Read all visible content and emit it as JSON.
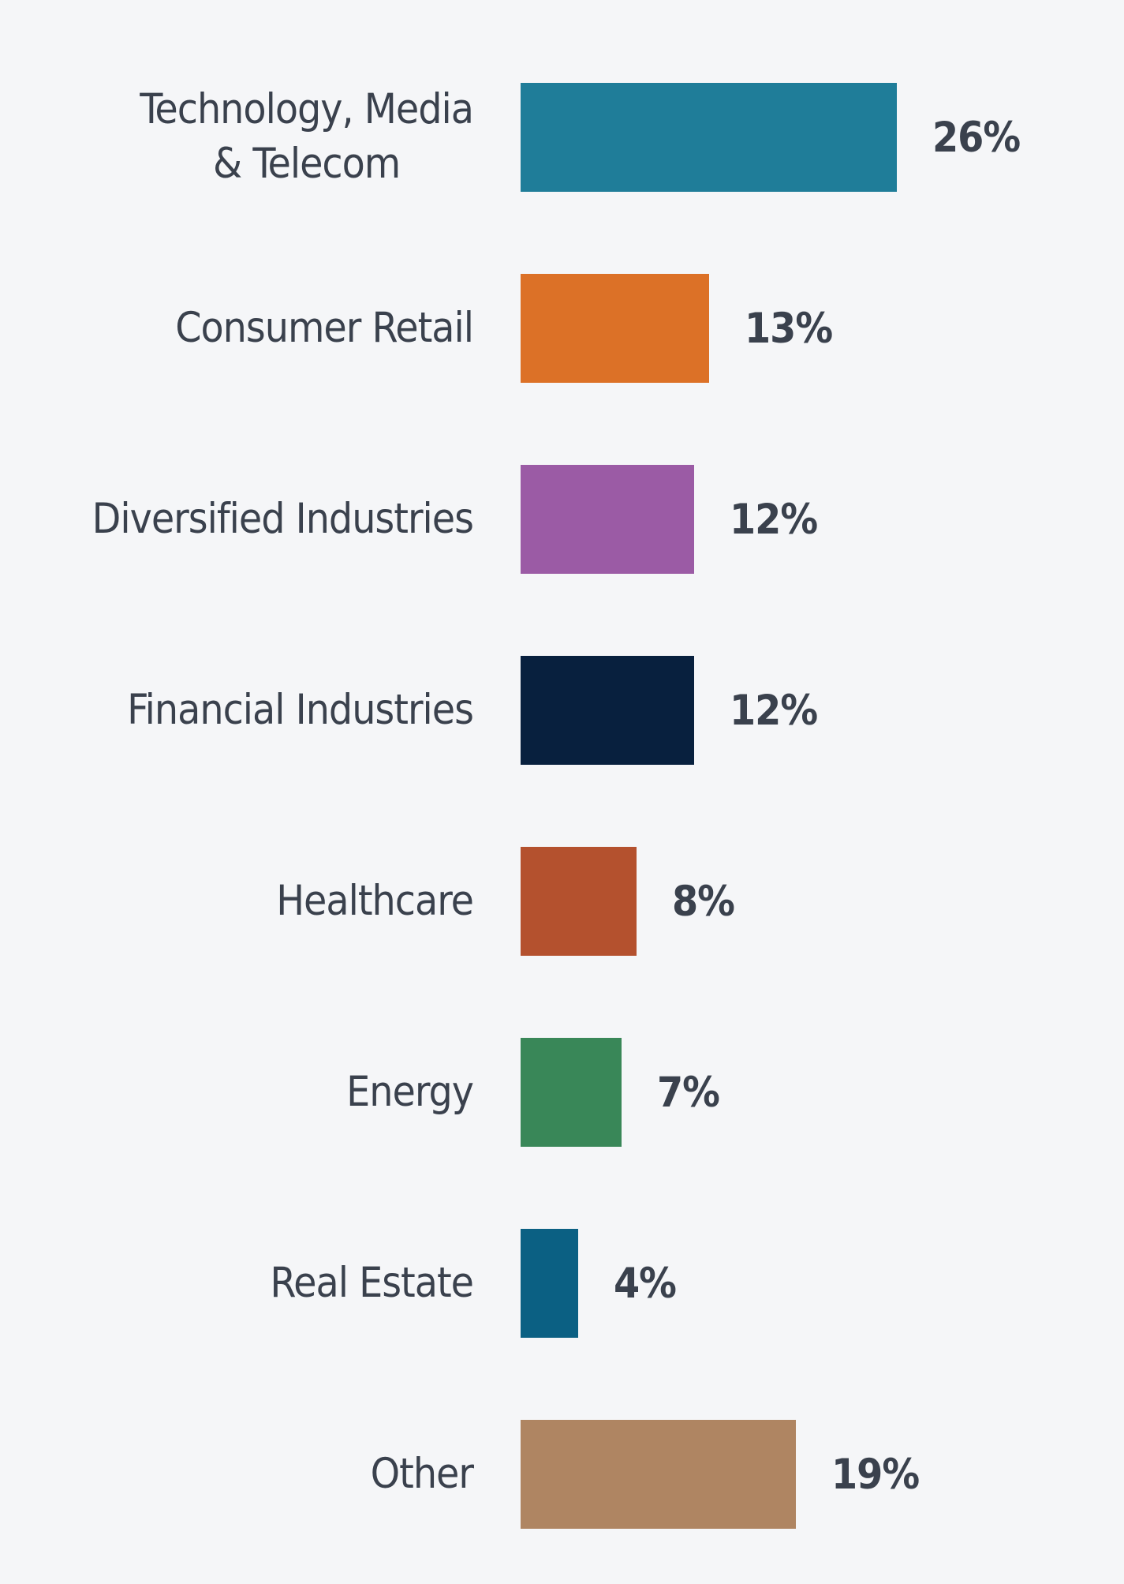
{
  "chart_data": {
    "type": "bar",
    "orientation": "horizontal",
    "title": "",
    "xlabel": "",
    "ylabel": "",
    "unit": "%",
    "xlim": [
      0,
      26
    ],
    "grid": false,
    "axes_visible": false,
    "legend": "none",
    "categories": [
      "Technology, Media\n& Telecom",
      "Consumer Retail",
      "Diversified Industries",
      "Financial Industries",
      "Healthcare",
      "Energy",
      "Real Estate",
      "Other"
    ],
    "values": [
      26,
      13,
      12,
      12,
      8,
      7,
      4,
      19
    ],
    "value_labels": [
      "26%",
      "13%",
      "12%",
      "12%",
      "8%",
      "7%",
      "4%",
      "19%"
    ],
    "bar_colors": [
      "#1F7D99",
      "#DC7127",
      "#9B5BA5",
      "#08203E",
      "#B4512E",
      "#398758",
      "#0B6083",
      "#AF8562"
    ],
    "colors": {
      "background": "#F5F6F8",
      "label_text": "#3A414D",
      "value_text": "#3A414D"
    }
  }
}
